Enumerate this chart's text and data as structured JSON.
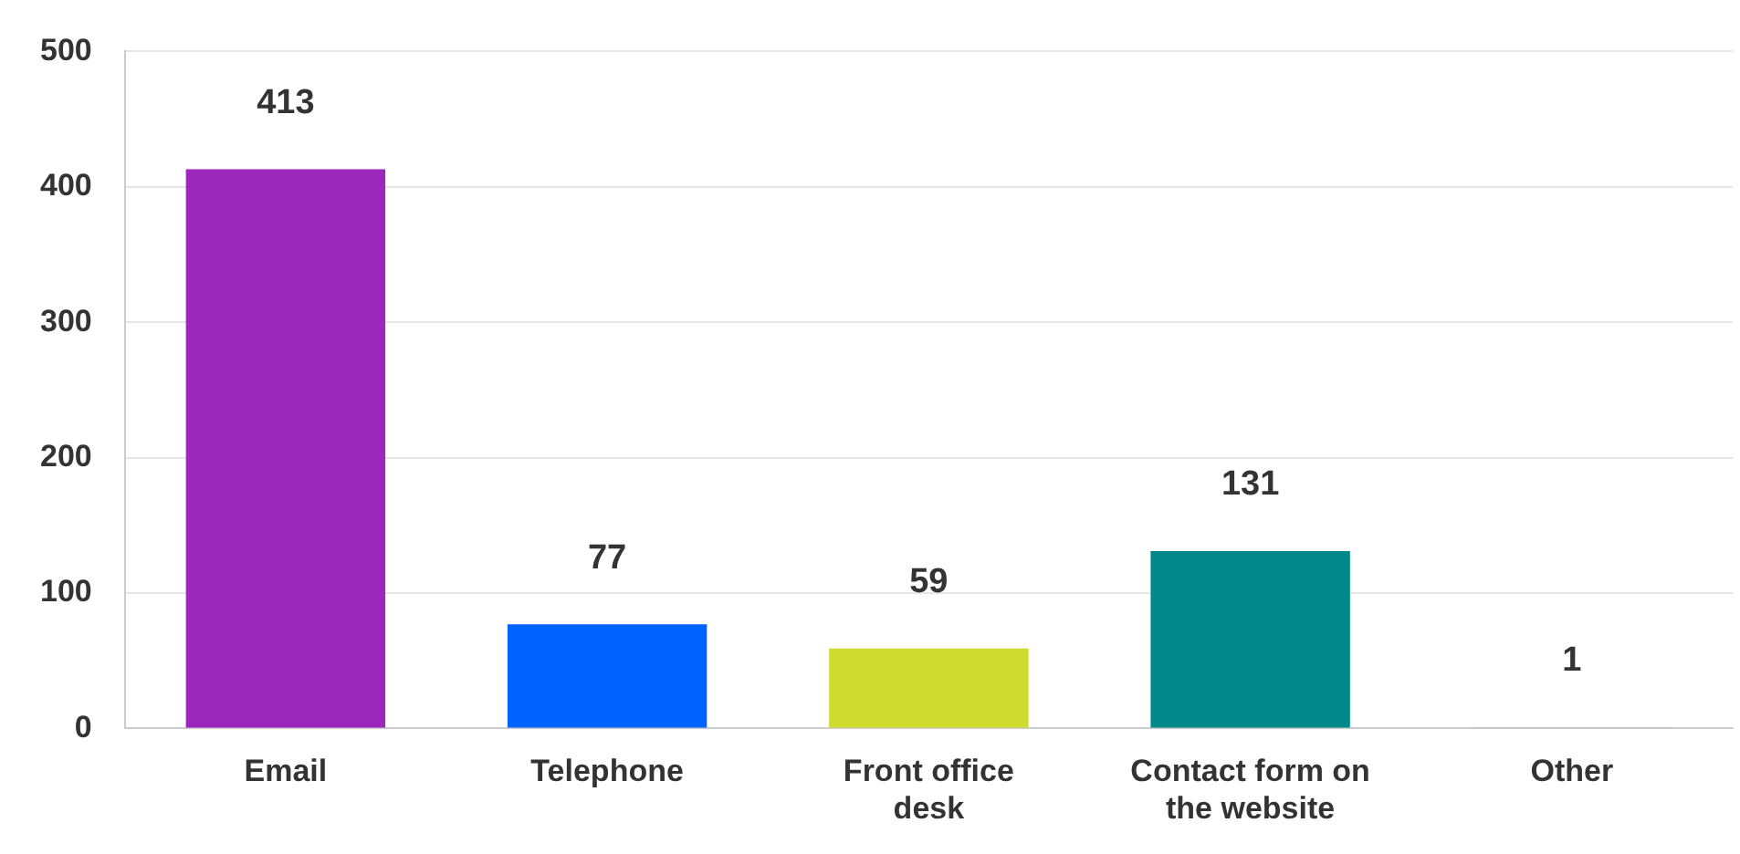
{
  "chart_data": {
    "type": "bar",
    "categories": [
      "Email",
      "Telephone",
      "Front office desk",
      "Contact form on the website",
      "Other"
    ],
    "values": [
      413,
      77,
      59,
      131,
      1
    ],
    "colors": [
      "#9b27bb",
      "#0062ff",
      "#cdda2e",
      "#00888a",
      "#aaaaaa"
    ],
    "ylim": [
      0,
      500
    ],
    "yticks": [
      0,
      100,
      200,
      300,
      400,
      500
    ],
    "grid": "y",
    "data_labels": true
  }
}
